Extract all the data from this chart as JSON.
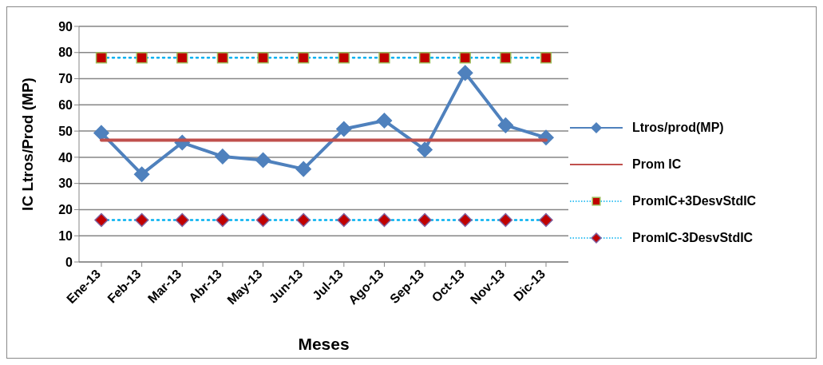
{
  "chart_data": {
    "type": "line",
    "xlabel": "Meses",
    "ylabel": "IC Ltros/Prod (MP)",
    "categories": [
      "Ene-13",
      "Feb-13",
      "Mar-13",
      "Abr-13",
      "May-13",
      "Jun-13",
      "Jul-13",
      "Ago-13",
      "Sep-13",
      "Oct-13",
      "Nov-13",
      "Dic-13"
    ],
    "series": [
      {
        "name": "Ltros/prod(MP)",
        "color": "#4f81bd",
        "marker": "diamond",
        "line_style": "solid",
        "values": [
          49.3,
          33.5,
          45.6,
          40.3,
          38.9,
          35.5,
          50.8,
          54,
          42.9,
          72.2,
          52.2,
          47.5
        ]
      },
      {
        "name": "Prom IC",
        "color": "#c0504d",
        "marker": "none",
        "line_style": "solid",
        "values": [
          46.5,
          46.5,
          46.5,
          46.5,
          46.5,
          46.5,
          46.5,
          46.5,
          46.5,
          46.5,
          46.5,
          46.5
        ]
      },
      {
        "name": "PromIC+3DesvStdIC",
        "color": "#00b0f0",
        "marker": "square",
        "line_style": "dotted",
        "values": [
          78,
          78,
          78,
          78,
          78,
          78,
          78,
          78,
          78,
          78,
          78,
          78
        ]
      },
      {
        "name": "PromIC-3DesvStdIC",
        "color": "#00b0f0",
        "marker": "diamond",
        "line_style": "dotted",
        "values": [
          16,
          16,
          16,
          16,
          16,
          16,
          16,
          16,
          16,
          16,
          16,
          16
        ]
      }
    ],
    "ylim": [
      0,
      90
    ],
    "yticks": [
      0,
      10,
      20,
      30,
      40,
      50,
      60,
      70,
      80,
      90
    ],
    "grid": "y",
    "legend": "right"
  }
}
